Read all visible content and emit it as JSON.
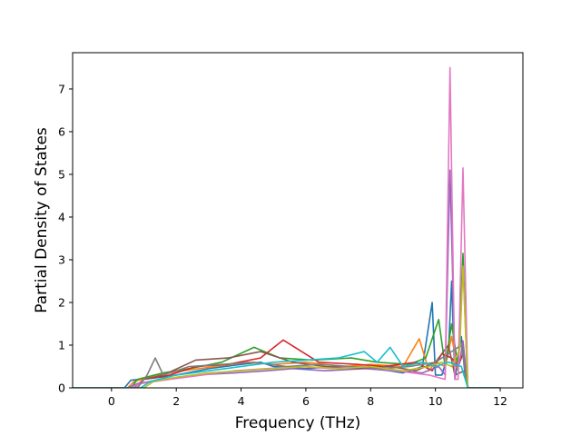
{
  "chart_data": {
    "type": "line",
    "xlabel": "Frequency (THz)",
    "ylabel": "Partial Density of States",
    "xlim": [
      -1.2,
      12.7
    ],
    "ylim": [
      0,
      7.85
    ],
    "xticks": [
      0,
      2,
      4,
      6,
      8,
      10,
      12
    ],
    "yticks": [
      0,
      1,
      2,
      3,
      4,
      5,
      6,
      7
    ],
    "grid": false,
    "legend": "none",
    "colors": [
      "#1f77b4",
      "#ff7f0e",
      "#2ca02c",
      "#d62728",
      "#9467bd",
      "#8c564b",
      "#e377c2",
      "#7f7f7f",
      "#bcbd22",
      "#17becf"
    ],
    "series": [
      {
        "x": [
          -1.2,
          0.4,
          0.6,
          1.2,
          2.0,
          3.0,
          4.0,
          4.6,
          5.0,
          6.0,
          7.0,
          8.0,
          8.6,
          9.0,
          9.6,
          9.9,
          10.0,
          10.2,
          10.4,
          10.5,
          10.6,
          10.8,
          10.9,
          11.0,
          12.0
        ],
        "y": [
          0,
          0,
          0.18,
          0.22,
          0.3,
          0.45,
          0.55,
          0.6,
          0.5,
          0.45,
          0.5,
          0.45,
          0.4,
          0.35,
          0.5,
          2.0,
          0.3,
          0.3,
          0.8,
          2.5,
          0.2,
          1.2,
          0.4,
          0,
          0
        ]
      },
      {
        "x": [
          -1.2,
          0.5,
          0.7,
          1.4,
          2.2,
          3.2,
          4.2,
          5.0,
          6.0,
          7.2,
          8.0,
          9.0,
          9.5,
          9.8,
          10.0,
          10.3,
          10.5,
          10.7,
          10.85,
          11.0,
          12.0
        ],
        "y": [
          0,
          0,
          0.15,
          0.3,
          0.4,
          0.5,
          0.6,
          0.55,
          0.6,
          0.5,
          0.55,
          0.5,
          1.15,
          0.4,
          0.6,
          0.5,
          1.2,
          0.4,
          2.9,
          0,
          0
        ]
      },
      {
        "x": [
          -1.2,
          0.6,
          0.8,
          1.6,
          2.4,
          3.4,
          4.4,
          5.2,
          6.2,
          7.4,
          8.2,
          9.2,
          9.7,
          10.1,
          10.3,
          10.5,
          10.7,
          10.85,
          11.0,
          12.0
        ],
        "y": [
          0,
          0,
          0.2,
          0.35,
          0.45,
          0.6,
          0.95,
          0.7,
          0.65,
          0.7,
          0.6,
          0.55,
          0.7,
          1.6,
          0.5,
          1.5,
          0.5,
          3.15,
          0,
          0
        ]
      },
      {
        "x": [
          -1.2,
          0.7,
          1.0,
          1.8,
          2.6,
          3.6,
          4.6,
          5.3,
          6.4,
          7.6,
          8.4,
          9.4,
          9.9,
          10.2,
          10.5,
          10.7,
          10.85,
          11.0,
          12.0
        ],
        "y": [
          0,
          0,
          0.2,
          0.3,
          0.5,
          0.55,
          0.7,
          1.12,
          0.6,
          0.55,
          0.5,
          0.6,
          0.4,
          0.8,
          0.7,
          0.5,
          0.8,
          0,
          0
        ]
      },
      {
        "x": [
          -1.2,
          0.5,
          0.8,
          1.6,
          2.6,
          3.8,
          4.8,
          5.6,
          6.6,
          7.8,
          8.8,
          9.6,
          10.1,
          10.3,
          10.45,
          10.6,
          10.75,
          10.85,
          11.0,
          12.0
        ],
        "y": [
          0,
          0,
          0.1,
          0.2,
          0.3,
          0.35,
          0.4,
          0.45,
          0.4,
          0.45,
          0.4,
          0.35,
          0.5,
          0.3,
          5.1,
          0.5,
          0.6,
          1.1,
          0,
          0
        ]
      },
      {
        "x": [
          -1.2,
          0.8,
          1.0,
          1.6,
          2.6,
          3.6,
          4.6,
          5.6,
          6.6,
          7.6,
          8.6,
          9.4,
          10.0,
          10.4,
          10.6,
          10.9,
          11.0,
          12.0
        ],
        "y": [
          0,
          0,
          0.2,
          0.3,
          0.65,
          0.7,
          0.85,
          0.6,
          0.5,
          0.45,
          0.5,
          0.4,
          0.6,
          1.0,
          0.3,
          0.4,
          0,
          0
        ]
      },
      {
        "x": [
          -1.2,
          0.6,
          0.9,
          1.8,
          2.8,
          3.8,
          4.8,
          5.8,
          6.8,
          7.8,
          8.8,
          9.8,
          10.3,
          10.45,
          10.6,
          10.7,
          10.85,
          11.0,
          12.0
        ],
        "y": [
          0,
          0,
          0.1,
          0.2,
          0.3,
          0.4,
          0.45,
          0.5,
          0.45,
          0.5,
          0.4,
          0.3,
          0.2,
          7.5,
          0.2,
          0.2,
          5.15,
          0,
          0
        ]
      },
      {
        "x": [
          -1.2,
          0.8,
          1.1,
          1.35,
          1.6,
          2.4,
          3.4,
          4.4,
          5.4,
          6.4,
          7.4,
          8.4,
          9.2,
          10.0,
          10.4,
          10.8,
          11.0,
          12.0
        ],
        "y": [
          0,
          0,
          0.3,
          0.7,
          0.3,
          0.5,
          0.55,
          0.6,
          0.5,
          0.55,
          0.5,
          0.45,
          0.5,
          0.6,
          0.8,
          1.0,
          0,
          0
        ]
      },
      {
        "x": [
          -1.2,
          1.0,
          1.3,
          2.0,
          3.0,
          4.0,
          5.0,
          6.0,
          7.0,
          8.0,
          9.0,
          9.8,
          10.2,
          10.5,
          10.75,
          10.85,
          11.0,
          12.0
        ],
        "y": [
          0,
          0,
          0.15,
          0.25,
          0.35,
          0.4,
          0.45,
          0.5,
          0.45,
          0.5,
          0.4,
          0.5,
          0.6,
          0.5,
          0.9,
          2.85,
          0,
          0
        ]
      },
      {
        "x": [
          -1.2,
          0.9,
          1.2,
          2.0,
          3.0,
          4.0,
          5.0,
          6.0,
          7.0,
          7.8,
          8.2,
          8.6,
          9.0,
          9.6,
          10.0,
          10.4,
          10.8,
          11.0,
          12.0
        ],
        "y": [
          0,
          0,
          0.15,
          0.3,
          0.4,
          0.5,
          0.6,
          0.65,
          0.7,
          0.85,
          0.6,
          0.95,
          0.5,
          0.6,
          0.5,
          0.6,
          0.5,
          0,
          0
        ]
      }
    ]
  }
}
